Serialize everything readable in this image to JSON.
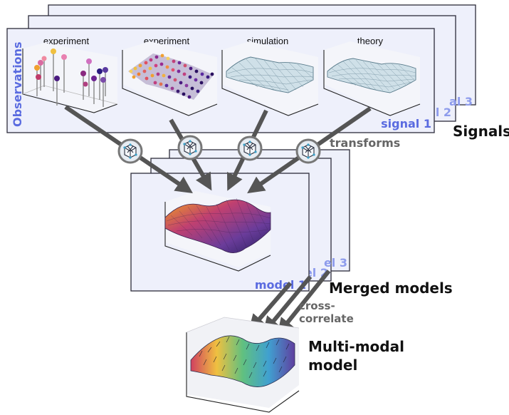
{
  "panel_titles": [
    "experiment",
    "experiment",
    "simulation",
    "theory"
  ],
  "observations_label": "Observations",
  "signal_tags": [
    "signal 1",
    "al 2",
    "al 3"
  ],
  "signals_label": "Signals",
  "transforms_label": "transforms",
  "model_tags": [
    "model 1",
    "el 2",
    "el 3"
  ],
  "merged_label": "Merged models",
  "cross_label": [
    "cross-",
    "correlate"
  ],
  "multimodal_label": [
    "Multi-modal",
    "model"
  ],
  "colors": {
    "frame_fill": "#eef0fb",
    "frame_stroke": "#2c2c3a",
    "accent_text": "#5a6be0",
    "arrow": "#555555",
    "surface_mesh": "#b9d2de",
    "merged_surface": "#7a4fa0"
  },
  "icons": [
    "lattice-icon",
    "lattice-icon",
    "lattice-icon",
    "lattice-icon"
  ]
}
